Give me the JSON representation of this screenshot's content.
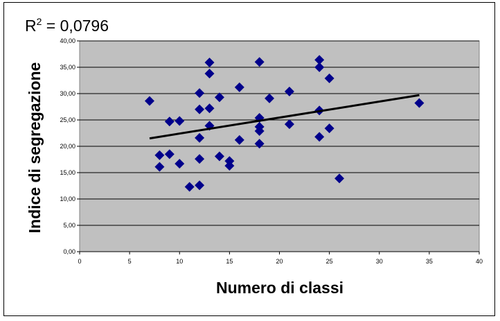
{
  "chart_data": {
    "type": "scatter",
    "title": "",
    "xlabel": "Numero di classi",
    "ylabel": "Indice di segregazione",
    "xlim": [
      0,
      40
    ],
    "ylim": [
      0,
      40
    ],
    "x_ticks": [
      "0",
      "5",
      "10",
      "15",
      "20",
      "25",
      "30",
      "35",
      "40"
    ],
    "y_ticks": [
      "0,00",
      "5,00",
      "10,00",
      "15,00",
      "20,00",
      "25,00",
      "30,00",
      "35,00",
      "40,00"
    ],
    "grid": "horizontal",
    "annotation": {
      "r2_base": "R",
      "r2_sup": "2",
      "r2_rest": " = 0,0796"
    },
    "points": [
      [
        7,
        28.6
      ],
      [
        8,
        18.3
      ],
      [
        8,
        16.1
      ],
      [
        9,
        24.7
      ],
      [
        9,
        18.5
      ],
      [
        10,
        24.8
      ],
      [
        10,
        16.7
      ],
      [
        11,
        12.3
      ],
      [
        12,
        30.1
      ],
      [
        12,
        27.0
      ],
      [
        12,
        21.6
      ],
      [
        12,
        17.6
      ],
      [
        12,
        12.6
      ],
      [
        13,
        35.9
      ],
      [
        13,
        33.8
      ],
      [
        13,
        27.2
      ],
      [
        13,
        23.9
      ],
      [
        14,
        29.3
      ],
      [
        14,
        18.1
      ],
      [
        15,
        17.2
      ],
      [
        15,
        16.3
      ],
      [
        16,
        31.2
      ],
      [
        16,
        21.2
      ],
      [
        18,
        36.0
      ],
      [
        18,
        25.4
      ],
      [
        18,
        23.7
      ],
      [
        18,
        22.9
      ],
      [
        18,
        20.5
      ],
      [
        19,
        29.1
      ],
      [
        21,
        30.4
      ],
      [
        21,
        24.2
      ],
      [
        24,
        36.4
      ],
      [
        24,
        35.0
      ],
      [
        24,
        26.8
      ],
      [
        24,
        21.8
      ],
      [
        25,
        32.9
      ],
      [
        25,
        23.4
      ],
      [
        26,
        13.9
      ],
      [
        34,
        28.2
      ]
    ],
    "trendline": {
      "x": [
        7,
        34
      ],
      "y": [
        21.5,
        29.7
      ]
    },
    "colors": {
      "marker": "#00008B",
      "plot_bg": "#C0C0C0",
      "trendline": "#000000",
      "grid": "#000000"
    }
  }
}
